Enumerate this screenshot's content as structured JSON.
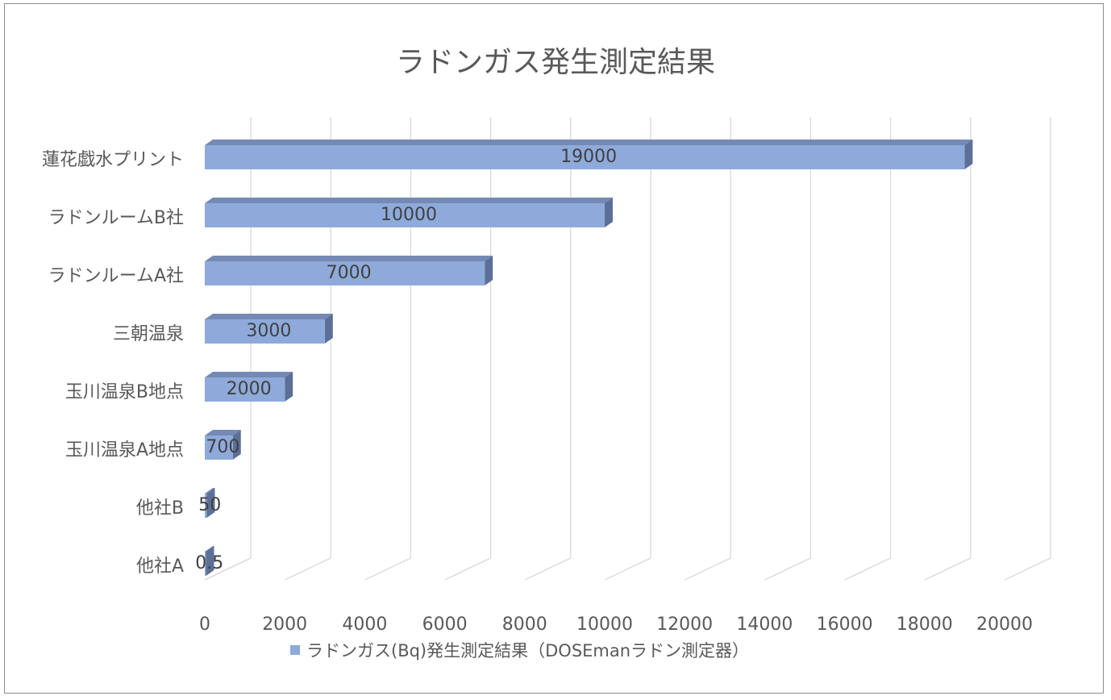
{
  "chart_data": {
    "type": "bar",
    "orientation": "horizontal",
    "style_3d": true,
    "title": "ラドンガス発生測定結果",
    "categories": [
      "蓮花戯水プリント",
      "ラドンルームB社",
      "ラドンルームA社",
      "三朝温泉",
      "玉川温泉B地点",
      "玉川温泉A地点",
      "他社B",
      "他社A"
    ],
    "series": [
      {
        "name": "ラドンガス(Bq)発生測定結果（DOSEmanラドン測定器）",
        "values": [
          19000,
          10000,
          7000,
          3000,
          2000,
          700,
          50,
          0.5
        ],
        "data_labels": [
          "19000",
          "10000",
          "7000",
          "3000",
          "2000",
          "700",
          "50",
          "0.5"
        ],
        "color": "#8eaadb",
        "top_color": "#7489b4",
        "side_color": "#5c6f96"
      }
    ],
    "xlim": [
      0,
      20000
    ],
    "x_ticks": [
      "0",
      "2000",
      "4000",
      "6000",
      "8000",
      "10000",
      "12000",
      "14000",
      "16000",
      "18000",
      "20000"
    ],
    "grid": true,
    "legend_position": "bottom"
  },
  "colors": {
    "gridline": "#d9d9d9",
    "text": "#595959",
    "frame": "#8c8c8c"
  }
}
